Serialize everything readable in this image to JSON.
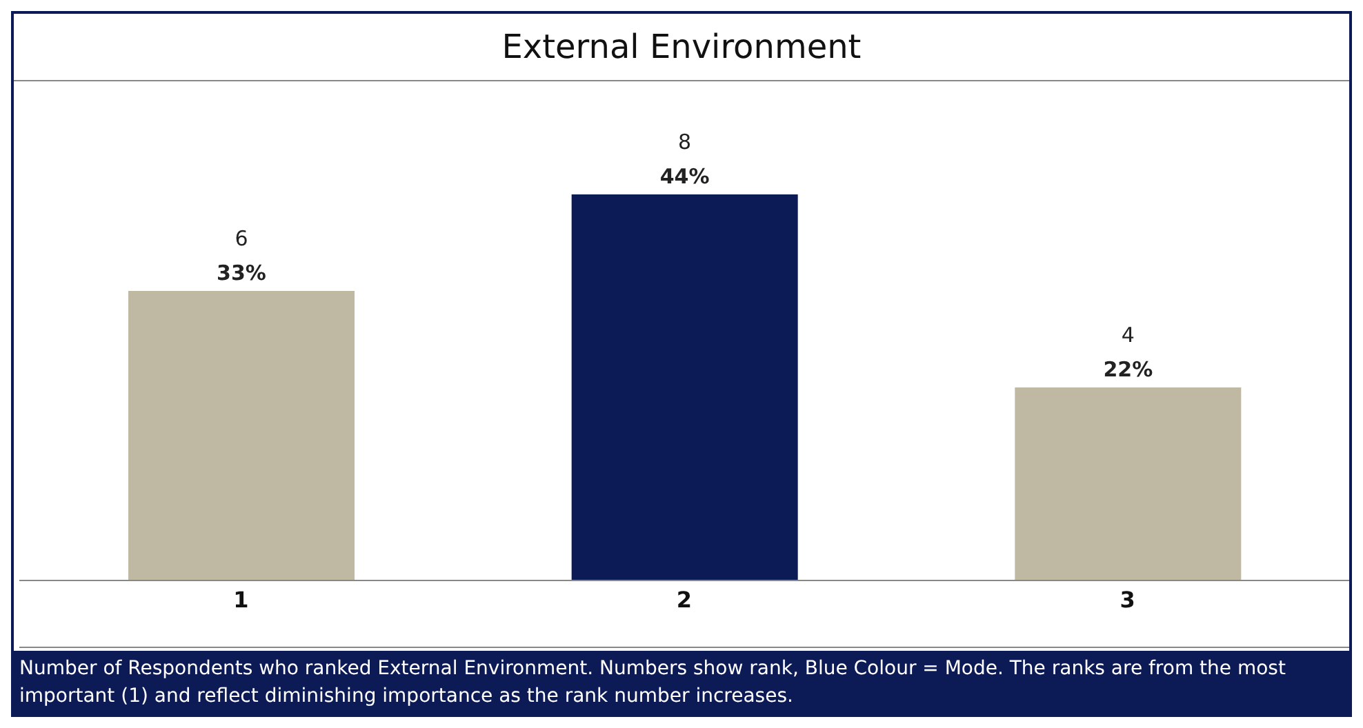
{
  "chart_data": {
    "type": "bar",
    "title": "External Environment",
    "categories": [
      "1",
      "2",
      "3"
    ],
    "values": [
      6,
      8,
      4
    ],
    "colors": [
      "#bfb8a2",
      "#0c1a56",
      "#bfb8a2"
    ],
    "value_labels": [
      "6\n33%",
      "8\n44%",
      "4\n22%"
    ],
    "grid": false,
    "legend": false,
    "annotations": [
      "Number of Respondents who ranked External Environment.  Numbers show rank, Blue Colour = Mode. The ranks are from the most important (1) and reflect diminishing importance as the rank number increases."
    ]
  }
}
